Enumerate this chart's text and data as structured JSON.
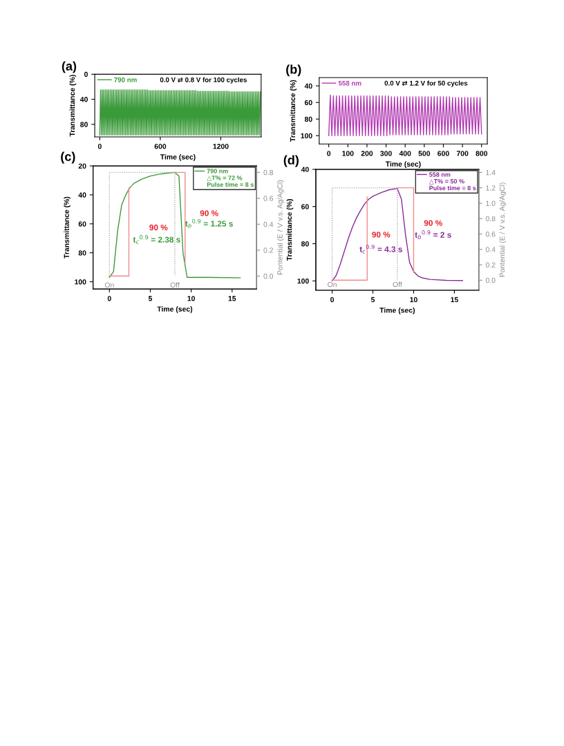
{
  "chart_data": [
    {
      "type": "line",
      "title": "(a)",
      "xlabel": "Time (sec)",
      "ylabel": "Transmittance (%)",
      "xlim": [
        -50,
        1600
      ],
      "xticks": [
        0,
        600,
        1200
      ],
      "ylim": [
        100,
        0
      ],
      "yticks": [
        0,
        40,
        80
      ],
      "legend": "top left",
      "annotations": [
        "0.0 V ⇄ 0.8 V for 100 cycles"
      ],
      "series": [
        {
          "name": "790 nm",
          "color": "#3a9a3a",
          "x": [
            0,
            8,
            16,
            24,
            32,
            40,
            48,
            56,
            64,
            72,
            80,
            88,
            96,
            104,
            112,
            120,
            128,
            136,
            144,
            152,
            160,
            168,
            176,
            184,
            192,
            200,
            208,
            216,
            224,
            232,
            240,
            248,
            256,
            264,
            272,
            280,
            288,
            296,
            304,
            312,
            320,
            328,
            336,
            344,
            352,
            360,
            368,
            376,
            384,
            392,
            400,
            408,
            416,
            424,
            432,
            440,
            448,
            456,
            464,
            472,
            480,
            488,
            496,
            504,
            512,
            520,
            528,
            536,
            544,
            552,
            560,
            568,
            576,
            584,
            592,
            600,
            608,
            616,
            624,
            632,
            640,
            648,
            656,
            664,
            672,
            680,
            688,
            696,
            704,
            712,
            720,
            728,
            736,
            744,
            752,
            760,
            768,
            776,
            784,
            792,
            800,
            808,
            816,
            824,
            832,
            840,
            848,
            856,
            864,
            872,
            880,
            888,
            896,
            904,
            912,
            920,
            928,
            936,
            944,
            952,
            960,
            968,
            976,
            984,
            992,
            1000,
            1008,
            1016,
            1024,
            1032,
            1040,
            1048,
            1056,
            1064,
            1072,
            1080,
            1088,
            1096,
            1104,
            1112,
            1120,
            1128,
            1136,
            1144,
            1152,
            1160,
            1168,
            1176,
            1184,
            1192,
            1200,
            1208,
            1216,
            1224,
            1232,
            1240,
            1248,
            1256,
            1264,
            1272,
            1280,
            1288,
            1296,
            1304,
            1312,
            1320,
            1328,
            1336,
            1344,
            1352,
            1360,
            1368,
            1376,
            1384,
            1392,
            1400,
            1408,
            1416,
            1424,
            1432,
            1440,
            1448,
            1456,
            1464,
            1472,
            1480,
            1488,
            1496,
            1504,
            1512,
            1520,
            1528,
            1536,
            1544,
            1552,
            1560,
            1568,
            1576,
            1584,
            1592
          ],
          "values": [
            97,
            25,
            97,
            25,
            97,
            25,
            97,
            25,
            97,
            25,
            97,
            25,
            97,
            25,
            97,
            25,
            97,
            25,
            97,
            25,
            97,
            25,
            97,
            25,
            97,
            25,
            97,
            25,
            97,
            25,
            97,
            25,
            97,
            25,
            97,
            25,
            97,
            25,
            97,
            25,
            97,
            25,
            97,
            25,
            97,
            25,
            97,
            25,
            97,
            25,
            97,
            25,
            97,
            25,
            97,
            25,
            97,
            25,
            97,
            25,
            97,
            26,
            97,
            26,
            97,
            26,
            97,
            26,
            97,
            26,
            97,
            26,
            97,
            26,
            97,
            26,
            97,
            26,
            97,
            26,
            97,
            26,
            97,
            26,
            97,
            26,
            97,
            26,
            97,
            26,
            97,
            26,
            97,
            26,
            97,
            26,
            97,
            26,
            97,
            26,
            97,
            26,
            97,
            26,
            97,
            26,
            97,
            26,
            97,
            26,
            97,
            26,
            97,
            26,
            97,
            26,
            97,
            26,
            97,
            26,
            97,
            27,
            97,
            27,
            97,
            27,
            97,
            27,
            97,
            27,
            97,
            27,
            97,
            27,
            97,
            27,
            97,
            27,
            97,
            27,
            97,
            27,
            97,
            27,
            97,
            27,
            97,
            27,
            97,
            27,
            97,
            27,
            97,
            27,
            97,
            27,
            97,
            27,
            97,
            27,
            97,
            28,
            97,
            28,
            97,
            28,
            97,
            28,
            97,
            28,
            97,
            28,
            97,
            28,
            97,
            28,
            97,
            28,
            97,
            28,
            97,
            28,
            97,
            28,
            97,
            28,
            97,
            28,
            97,
            28,
            97,
            28,
            97,
            28,
            97,
            28,
            97,
            28,
            97,
            28
          ]
        }
      ]
    },
    {
      "type": "line",
      "title": "(b)",
      "xlabel": "Time (sec)",
      "ylabel": "Transmittance (%)",
      "xlim": [
        -50,
        830
      ],
      "xticks": [
        0,
        100,
        200,
        300,
        400,
        500,
        600,
        700,
        800
      ],
      "ylim": [
        110,
        30
      ],
      "yticks": [
        40,
        60,
        80,
        100
      ],
      "legend": "top left",
      "annotations": [
        "0.0 V ⇄ 1.2 V for 50 cycles"
      ],
      "series": [
        {
          "name": "558 nm",
          "color": "#b23ab2",
          "x": [
            0,
            8,
            16,
            24,
            32,
            40,
            48,
            56,
            64,
            72,
            80,
            88,
            96,
            104,
            112,
            120,
            128,
            136,
            144,
            152,
            160,
            168,
            176,
            184,
            192,
            200,
            208,
            216,
            224,
            232,
            240,
            248,
            256,
            264,
            272,
            280,
            288,
            296,
            304,
            312,
            320,
            328,
            336,
            344,
            352,
            360,
            368,
            376,
            384,
            392,
            400,
            408,
            416,
            424,
            432,
            440,
            448,
            456,
            464,
            472,
            480,
            488,
            496,
            504,
            512,
            520,
            528,
            536,
            544,
            552,
            560,
            568,
            576,
            584,
            592,
            600,
            608,
            616,
            624,
            632,
            640,
            648,
            656,
            664,
            672,
            680,
            688,
            696,
            704,
            712,
            720,
            728,
            736,
            744,
            752,
            760,
            768,
            776,
            784,
            792,
            800
          ],
          "values": [
            100,
            51,
            100,
            52,
            100,
            52,
            100,
            52,
            100,
            52,
            100,
            52,
            100,
            52,
            100,
            52,
            100,
            52,
            100,
            52,
            100,
            52,
            100,
            52,
            100,
            52,
            100,
            52,
            100,
            52,
            100,
            52,
            100,
            52,
            100,
            52,
            100,
            52,
            100,
            52,
            99,
            53,
            99,
            53,
            99,
            53,
            99,
            53,
            99,
            53,
            99,
            53,
            99,
            53,
            99,
            53,
            99,
            53,
            99,
            53,
            99,
            53,
            99,
            53,
            99,
            53,
            99,
            53,
            99,
            53,
            99,
            53,
            99,
            53,
            99,
            53,
            99,
            53,
            99,
            53,
            98,
            54,
            98,
            54,
            98,
            54,
            98,
            54,
            98,
            54,
            98,
            54,
            98,
            54,
            98,
            54,
            98,
            54,
            98,
            54,
            98
          ]
        }
      ]
    },
    {
      "type": "line",
      "title": "(c)",
      "xlabel": "Time (sec)",
      "ylabel": "Transmittance (%)",
      "y2label": "Pontential (E / V v.s. Ag/AgCl)",
      "xlim": [
        -2,
        18
      ],
      "xticks": [
        0,
        5,
        10,
        15
      ],
      "ylim": [
        105,
        20
      ],
      "yticks": [
        20,
        40,
        60,
        80,
        100
      ],
      "y2lim": [
        -0.1,
        0.85
      ],
      "y2ticks": [
        {
          "value": 0,
          "label": "0.0"
        },
        {
          "value": 0.2,
          "label": "0.2"
        },
        {
          "value": 0.4,
          "label": "0.4"
        },
        {
          "value": 0.6,
          "label": "0.6"
        },
        {
          "value": 0.8,
          "label": "0.8"
        }
      ],
      "legend": "top right",
      "annotations": [
        "90 %",
        "t$_{c}$$^{0.9}$ = 2.38 s",
        "90 %",
        "t$_{b}$$^{0.9}$ = 1.25 s",
        "On",
        "Off",
        "△T% = 72 %",
        "Pulse time = 8 s"
      ],
      "series": [
        {
          "name": "790 nm",
          "color": "#3a9a3a",
          "x": [
            0,
            0.5,
            1,
            1.5,
            2,
            2.5,
            3,
            4,
            5,
            6,
            7,
            8,
            8.5,
            9,
            9.5,
            10,
            12,
            16
          ],
          "values": [
            97,
            93,
            65,
            47,
            40,
            35,
            32,
            29,
            27,
            25.8,
            25,
            24.5,
            27,
            80,
            97,
            97,
            97,
            97.3
          ]
        },
        {
          "color": "#b0b0b0",
          "axis": "y2",
          "line_style": "dotted",
          "x": [
            0,
            0,
            8,
            8
          ],
          "values": [
            0,
            0.8,
            0.8,
            0
          ]
        },
        {
          "color": "#f08a8a",
          "axis": "y2",
          "x": [
            0,
            2.38,
            2.38
          ],
          "values": [
            0,
            0,
            0.68
          ]
        },
        {
          "color": "#f08a8a",
          "axis": "y2",
          "x": [
            8,
            9.25,
            9.25
          ],
          "values": [
            0.8,
            0.8,
            0.1
          ]
        }
      ]
    },
    {
      "type": "line",
      "title": "(d)",
      "xlabel": "Time (sec)",
      "ylabel": "Transmittance (%)",
      "y2label": "Pontential (E / V v.s. Ag/AgCl)",
      "xlim": [
        -2,
        18
      ],
      "xticks": [
        0,
        5,
        10,
        15
      ],
      "ylim": [
        105,
        40
      ],
      "yticks": [
        40,
        60,
        80,
        100
      ],
      "y2lim": [
        -0.13,
        1.44
      ],
      "y2ticks": [
        {
          "value": 0,
          "label": "0.0"
        },
        {
          "value": 0.2,
          "label": "0.2"
        },
        {
          "value": 0.4,
          "label": "0.4"
        },
        {
          "value": 0.6,
          "label": "0.6"
        },
        {
          "value": 0.8,
          "label": "0.8"
        },
        {
          "value": 1.0,
          "label": "1.0"
        },
        {
          "value": 1.2,
          "label": "1.2"
        },
        {
          "value": 1.4,
          "label": "1.4"
        }
      ],
      "legend": "top right",
      "annotations": [
        "90 %",
        "t$_{c}$$^{0.9}$ = 4.3 s",
        "90 %",
        "t$_{b}$$^{0.9}$ = 2 s",
        "On",
        "Off",
        "△T% = 50 %",
        "Pulse time = 8 s"
      ],
      "series": [
        {
          "name": "558 nm",
          "color": "#8a2a9a",
          "x": [
            0,
            0.5,
            1,
            1.5,
            2,
            2.5,
            3,
            3.5,
            4,
            4.5,
            5,
            6,
            7,
            8,
            8.5,
            9,
            9.5,
            10,
            10.5,
            11,
            12,
            14,
            16
          ],
          "values": [
            100,
            97,
            91,
            84,
            77,
            71,
            66,
            62,
            58.5,
            56,
            54.5,
            52.5,
            51,
            50.3,
            56,
            75,
            90,
            95,
            97.2,
            98.3,
            99.2,
            99.7,
            99.8
          ]
        },
        {
          "color": "#b0b0b0",
          "axis": "y2",
          "line_style": "dotted",
          "x": [
            0,
            0,
            8,
            8
          ],
          "values": [
            0,
            1.2,
            1.2,
            0
          ]
        },
        {
          "color": "#f08a8a",
          "axis": "y2",
          "x": [
            0,
            4.3,
            4.3
          ],
          "values": [
            0,
            0,
            1.08
          ]
        },
        {
          "color": "#f08a8a",
          "axis": "y2",
          "x": [
            8,
            10,
            10
          ],
          "values": [
            1.2,
            1.2,
            0.1
          ]
        }
      ]
    }
  ]
}
